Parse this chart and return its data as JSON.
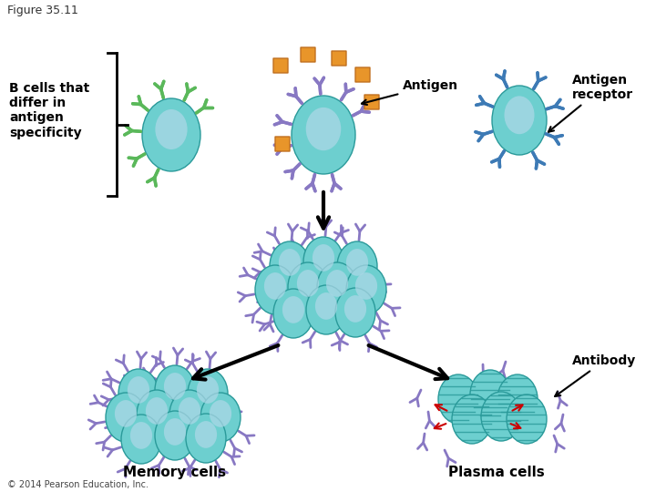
{
  "title": "Figure 35.11",
  "bg_color": "#ffffff",
  "cell_body_color": "#6dcfcf",
  "cell_inner_color": "#b0d8e8",
  "receptor_green": "#5ab85a",
  "receptor_purple": "#8878c3",
  "receptor_blue": "#3d7ab5",
  "antigen_orange": "#e8952a",
  "arrow_color": "#1a1a1a",
  "red_arrow": "#cc0000",
  "label_antigen": "Antigen",
  "label_antigen_receptor": "Antigen\nreceptor",
  "label_antibody": "Antibody",
  "label_memory": "Memory cells",
  "label_plasma": "Plasma cells",
  "label_bcells": "B cells that\ndiffer in\nantigen\nspecificity",
  "label_figure": "Figure 35.11",
  "label_copyright": "© 2014 Pearson Education, Inc."
}
